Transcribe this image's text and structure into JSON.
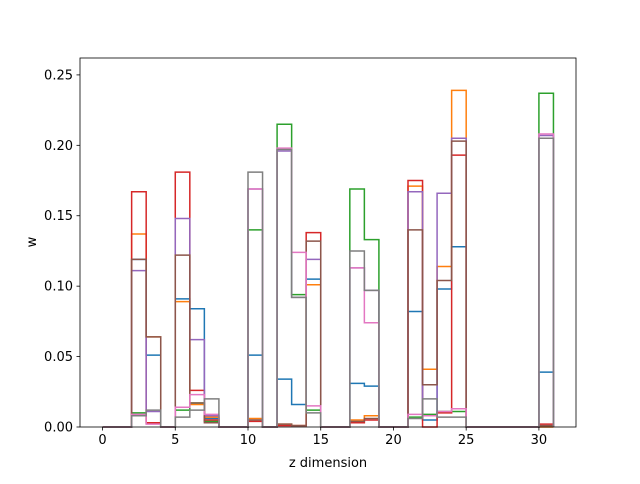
{
  "chart_data": {
    "type": "step-histogram",
    "title": "",
    "xlabel": "z dimension",
    "ylabel": "w",
    "xlim": [
      -1.55,
      32.55
    ],
    "ylim": [
      0,
      0.262
    ],
    "grid": false,
    "legend": "none",
    "x_ticks": [
      0,
      5,
      10,
      15,
      20,
      25,
      30
    ],
    "x_tick_labels": [
      "0",
      "5",
      "10",
      "15",
      "20",
      "25",
      "30"
    ],
    "y_ticks": [
      0,
      0.05,
      0.1,
      0.15,
      0.2,
      0.25
    ],
    "y_tick_labels": [
      "0.00",
      "0.05",
      "0.10",
      "0.15",
      "0.20",
      "0.25"
    ],
    "bin_edges": [
      0,
      1,
      2,
      3,
      4,
      5,
      6,
      7,
      8,
      9,
      10,
      11,
      12,
      13,
      14,
      15,
      16,
      17,
      18,
      19,
      20,
      21,
      22,
      23,
      24,
      25,
      26,
      27,
      28,
      29,
      30,
      31
    ],
    "series": [
      {
        "color": "#1f77b4",
        "values": [
          0,
          0,
          0.119,
          0.051,
          0,
          0.091,
          0.084,
          0.006,
          0,
          0,
          0.051,
          0,
          0.034,
          0.016,
          0.105,
          0,
          0,
          0.031,
          0.029,
          0,
          0,
          0.082,
          0.005,
          0.098,
          0.128,
          0,
          0,
          0,
          0,
          0,
          0.039
        ]
      },
      {
        "color": "#ff7f0e",
        "values": [
          0,
          0,
          0.137,
          0.064,
          0,
          0.089,
          0.016,
          0.007,
          0,
          0,
          0.006,
          0,
          0.002,
          0.001,
          0.101,
          0,
          0,
          0.005,
          0.008,
          0,
          0,
          0.171,
          0.041,
          0.114,
          0.239,
          0,
          0,
          0,
          0,
          0,
          0
        ]
      },
      {
        "color": "#2ca02c",
        "values": [
          0,
          0,
          0.01,
          0.003,
          0,
          0.012,
          0.017,
          0.004,
          0,
          0,
          0.14,
          0,
          0.215,
          0.094,
          0.012,
          0,
          0,
          0.169,
          0.133,
          0,
          0,
          0.007,
          0.009,
          0.011,
          0.011,
          0,
          0,
          0,
          0,
          0,
          0.237
        ]
      },
      {
        "color": "#d62728",
        "values": [
          0,
          0,
          0.167,
          0.003,
          0,
          0.181,
          0.026,
          0.005,
          0,
          0,
          0.004,
          0,
          0.001,
          0.001,
          0.138,
          0,
          0,
          0.003,
          0.005,
          0,
          0,
          0.175,
          0,
          0.01,
          0.193,
          0,
          0,
          0,
          0,
          0,
          0.002
        ]
      },
      {
        "color": "#9467bd",
        "values": [
          0,
          0,
          0.111,
          0.011,
          0,
          0.148,
          0.062,
          0.008,
          0,
          0,
          0.169,
          0,
          0.196,
          0.092,
          0.119,
          0,
          0,
          0.113,
          0.097,
          0,
          0,
          0.167,
          0.008,
          0.166,
          0.205,
          0,
          0,
          0,
          0,
          0,
          0.207
        ]
      },
      {
        "color": "#8c564b",
        "values": [
          0,
          0,
          0.119,
          0.064,
          0,
          0.122,
          0.017,
          0.003,
          0,
          0,
          0.005,
          0,
          0.002,
          0.001,
          0.132,
          0,
          0,
          0.004,
          0.006,
          0,
          0,
          0.14,
          0.03,
          0.104,
          0.203,
          0,
          0,
          0,
          0,
          0,
          0.001
        ]
      },
      {
        "color": "#e377c2",
        "values": [
          0,
          0,
          0.009,
          0.002,
          0,
          0.014,
          0.023,
          0.009,
          0,
          0,
          0.169,
          0,
          0.198,
          0.124,
          0.015,
          0,
          0,
          0.113,
          0.074,
          0,
          0,
          0.009,
          0.008,
          0.011,
          0.013,
          0,
          0,
          0,
          0,
          0,
          0.208
        ]
      },
      {
        "color": "#7f7f7f",
        "values": [
          0,
          0,
          0.008,
          0.012,
          0,
          0.007,
          0.012,
          0.02,
          0,
          0,
          0.181,
          0,
          0.197,
          0.092,
          0.01,
          0,
          0,
          0.125,
          0.097,
          0,
          0,
          0.006,
          0.02,
          0.007,
          0.007,
          0,
          0,
          0,
          0,
          0,
          0.205
        ]
      }
    ]
  }
}
